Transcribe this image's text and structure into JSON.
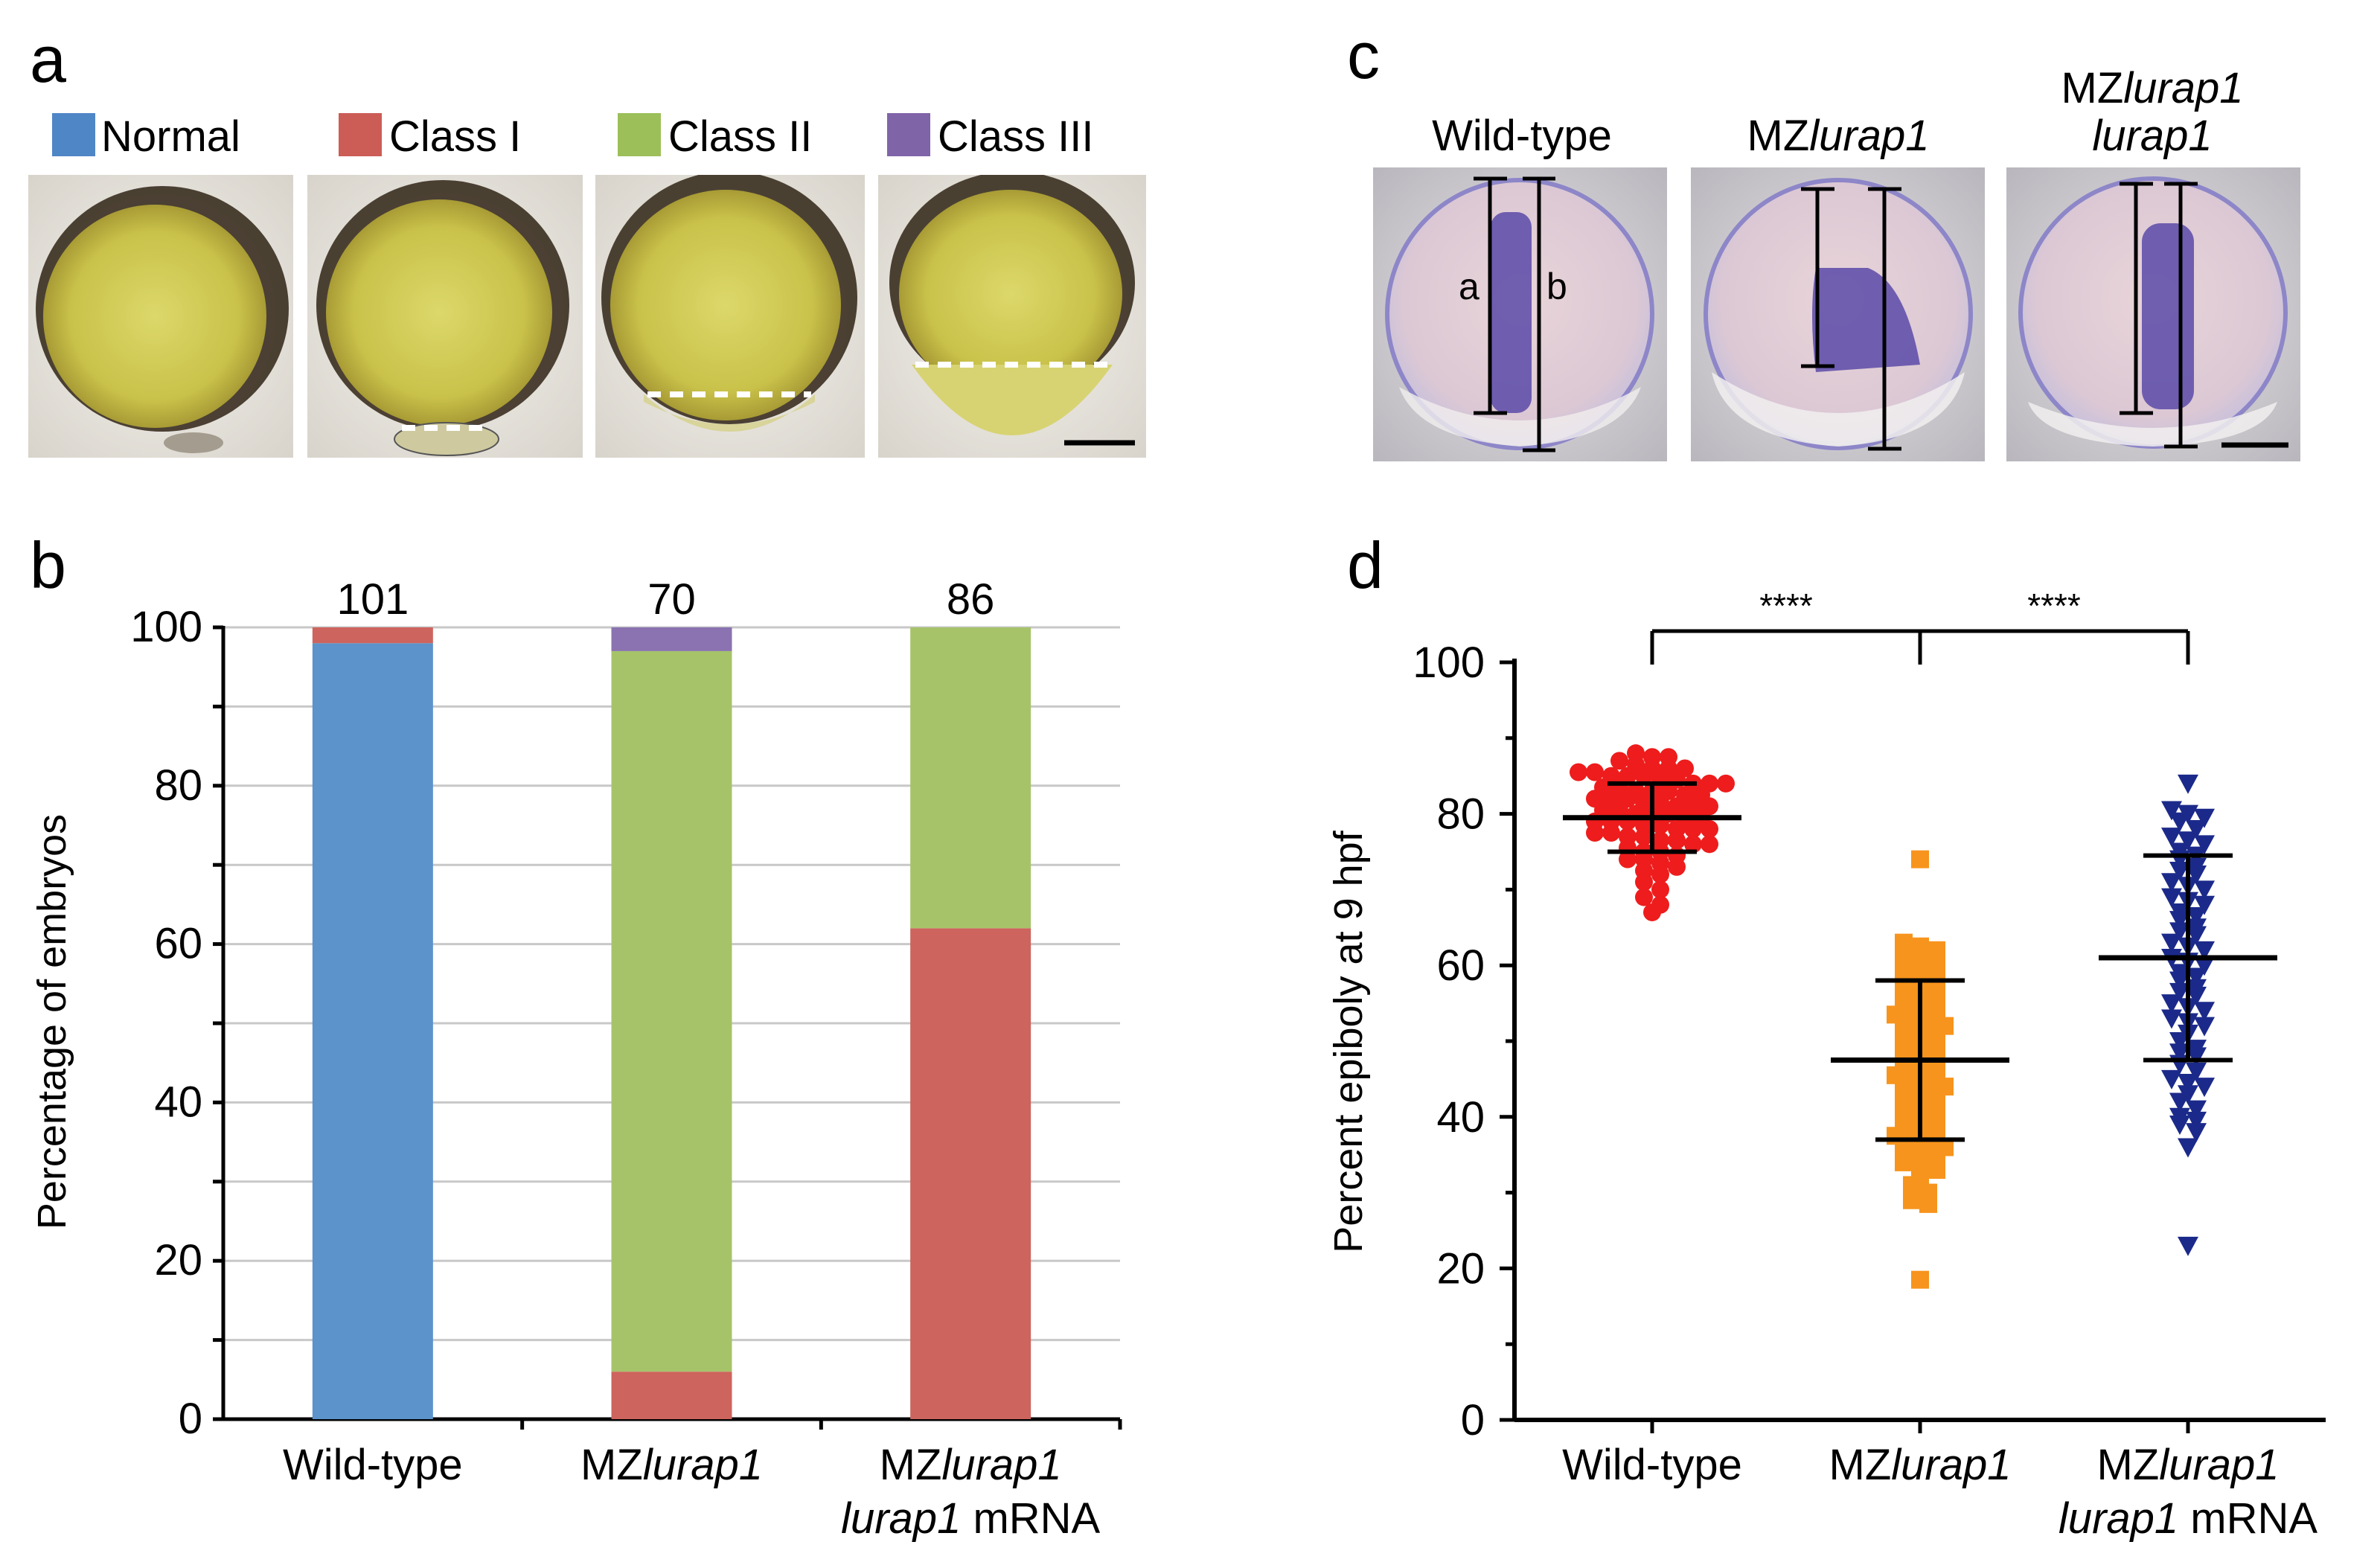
{
  "panels": {
    "a": "a",
    "b": "b",
    "c": "c",
    "d": "d"
  },
  "legend": [
    {
      "label": "Normal",
      "color": "#4f86c6"
    },
    {
      "label": "Class I",
      "color": "#cc5c56"
    },
    {
      "label": "Class II",
      "color": "#9cbf5a"
    },
    {
      "label": "Class III",
      "color": "#8064a8"
    }
  ],
  "panel_c": {
    "labels": [
      {
        "main": "Wild-type",
        "italic": ""
      },
      {
        "main": "MZ",
        "italic": "lurap1"
      },
      {
        "main": "MZ",
        "italic": "lurap1",
        "line2_italic": "lurap1"
      }
    ],
    "measure_a": "a",
    "measure_b": "b"
  },
  "chart_data": [
    {
      "panel": "b",
      "type": "bar",
      "stacked": true,
      "ylabel": "Percentage of embryos",
      "ylim": [
        0,
        100
      ],
      "yticks": [
        "0",
        "20",
        "40",
        "60",
        "80",
        "100"
      ],
      "categories": [
        {
          "main": "Wild-type",
          "italic": "",
          "line2_italic": "",
          "line2_rest": ""
        },
        {
          "main": "MZ",
          "italic": "lurap1",
          "line2_italic": "",
          "line2_rest": ""
        },
        {
          "main": "MZ",
          "italic": "lurap1",
          "line2_italic": "lurap1",
          "line2_rest": " mRNA"
        }
      ],
      "counts": [
        "101",
        "70",
        "86"
      ],
      "series": [
        {
          "name": "Normal",
          "color": "#5b93ca",
          "values": [
            98,
            0,
            0
          ]
        },
        {
          "name": "Class I",
          "color": "#cd645d",
          "values": [
            2,
            6,
            62
          ]
        },
        {
          "name": "Class II",
          "color": "#a6c36a",
          "values": [
            0,
            91,
            38
          ]
        },
        {
          "name": "Class III",
          "color": "#8a73b0",
          "values": [
            0,
            3,
            0
          ]
        }
      ]
    },
    {
      "panel": "d",
      "type": "scatter",
      "ylabel": "Percent epiboly at 9 hpf",
      "ylim": [
        0,
        100
      ],
      "yticks": [
        "0",
        "20",
        "40",
        "60",
        "80",
        "100"
      ],
      "categories": [
        {
          "main": "Wild-type",
          "italic": "",
          "line2_italic": "",
          "line2_rest": ""
        },
        {
          "main": "MZ",
          "italic": "lurap1",
          "line2_italic": "",
          "line2_rest": ""
        },
        {
          "main": "MZ",
          "italic": "lurap1",
          "line2_italic": "lurap1",
          "line2_rest": " mRNA"
        }
      ],
      "groups": [
        {
          "name": "Wild-type",
          "color": "#ee1c1c",
          "marker": "circle",
          "mean": 79.5,
          "sd": 4.5,
          "values": [
            88,
            87.5,
            87.5,
            87,
            86.5,
            86,
            86,
            86,
            85.5,
            85.5,
            85,
            85,
            85,
            84.5,
            84.5,
            84,
            84,
            84,
            83.5,
            83.5,
            83,
            83,
            83,
            82.5,
            82.5,
            82,
            82,
            82,
            81.5,
            81.5,
            81,
            81,
            81,
            80.5,
            80.5,
            80,
            80,
            80,
            79.5,
            79.5,
            79,
            79,
            79,
            78.5,
            78.5,
            78,
            78,
            78,
            77.5,
            77.5,
            77,
            77,
            76.5,
            76.5,
            76,
            76,
            75.5,
            75,
            75,
            74.5,
            74,
            74,
            73.5,
            73,
            72.5,
            72,
            71,
            70,
            69,
            68,
            67
          ]
        },
        {
          "name": "MZlurap1",
          "color": "#f7941d",
          "marker": "square",
          "mean": 47.5,
          "sd": 10.5,
          "values": [
            74,
            63,
            62.5,
            62,
            61,
            60.5,
            60,
            59.5,
            59,
            58.5,
            58,
            57.5,
            57,
            56.5,
            56,
            55.5,
            55,
            54.5,
            54,
            53.5,
            53,
            52.5,
            52,
            51.5,
            51,
            50.5,
            50,
            49.5,
            49,
            48.5,
            48,
            47.5,
            47,
            46.5,
            46,
            45.5,
            45,
            44.5,
            44,
            43.5,
            43,
            42.5,
            42,
            41.5,
            41,
            40.5,
            40,
            39.5,
            39,
            38.5,
            38,
            37.5,
            37,
            36.5,
            36,
            35.5,
            35,
            34.5,
            34,
            33.5,
            33,
            32,
            31,
            30,
            29,
            28.5,
            18.5
          ]
        },
        {
          "name": "MZlurap1 lurap1 mRNA",
          "color": "#1b2a8a",
          "marker": "triangle-down",
          "mean": 61,
          "sd": 13.5,
          "values": [
            84,
            80.5,
            80,
            79.5,
            79,
            78,
            77,
            76.5,
            76,
            75,
            74.5,
            74,
            73,
            72.5,
            72,
            71,
            70.5,
            70,
            69,
            68.5,
            68,
            67,
            66.5,
            66,
            65,
            64.5,
            64,
            63,
            62.5,
            62,
            61,
            60.5,
            60,
            59,
            58.5,
            58,
            57,
            56.5,
            56,
            55,
            54.5,
            54,
            53,
            52.5,
            52,
            51,
            50,
            49,
            48.5,
            48,
            47,
            46,
            45,
            44.5,
            44,
            43,
            42,
            41,
            40,
            39.5,
            39,
            38,
            36,
            23
          ]
        }
      ],
      "significance": [
        "****",
        "****"
      ]
    }
  ]
}
